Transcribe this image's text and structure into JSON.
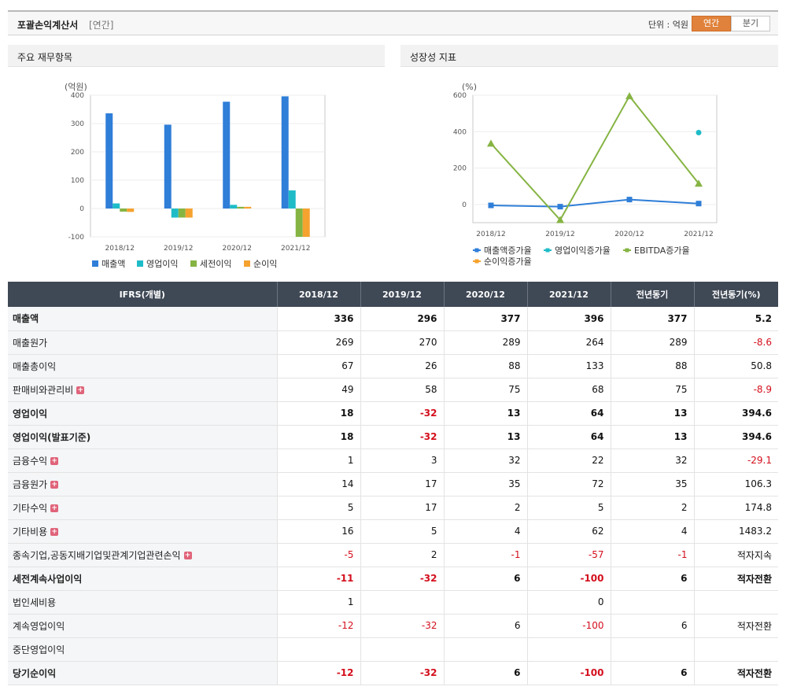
{
  "header": {
    "title": "포괄손익계산서",
    "sub": "[연간]",
    "unit": "단위 : 억원",
    "toggle": [
      "연간",
      "분기"
    ]
  },
  "left_chart": {
    "heading": "주요 재무항목",
    "colors": [
      "#2f7ed8",
      "#1fbcc8",
      "#86b443",
      "#f5a22f"
    ],
    "chart_data": {
      "type": "bar",
      "ylabel": "(억원)",
      "categories": [
        "2018/12",
        "2019/12",
        "2020/12",
        "2021/12"
      ],
      "ylim": [
        -100,
        400
      ],
      "yticks": [
        400,
        300,
        200,
        100,
        0,
        -100
      ],
      "series": [
        {
          "name": "매출액",
          "values": [
            336,
            296,
            377,
            396
          ]
        },
        {
          "name": "영업이익",
          "values": [
            18,
            -32,
            13,
            64
          ]
        },
        {
          "name": "세전이익",
          "values": [
            -11,
            -32,
            6,
            -100
          ]
        },
        {
          "name": "순이익",
          "values": [
            -12,
            -32,
            6,
            -100
          ]
        }
      ]
    }
  },
  "right_chart": {
    "heading": "성장성 지표",
    "colors": [
      "#2f7ed8",
      "#1fbcc8",
      "#86b443",
      "#f5a22f"
    ],
    "chart_data": {
      "type": "line",
      "ylabel": "(%)",
      "categories": [
        "2018/12",
        "2019/12",
        "2020/12",
        "2021/12"
      ],
      "ylim": [
        -100,
        600
      ],
      "yticks": [
        600,
        400,
        200,
        0
      ],
      "series": [
        {
          "name": "매출액증가율",
          "values": [
            -5,
            -12,
            27,
            5
          ]
        },
        {
          "name": "영업이익증가율",
          "values": [
            null,
            null,
            null,
            394.6
          ]
        },
        {
          "name": "EBITDA증가율",
          "values": [
            335,
            -85,
            595,
            115
          ]
        },
        {
          "name": "순이익증가율",
          "values": [
            null,
            null,
            null,
            null
          ]
        }
      ]
    }
  },
  "table": {
    "headers": [
      "IFRS(개별)",
      "2018/12",
      "2019/12",
      "2020/12",
      "2021/12",
      "전년동기",
      "전년동기(%)"
    ],
    "rows": [
      {
        "label": "매출액",
        "bold": true,
        "expand": false,
        "values": [
          "336",
          "296",
          "377",
          "396",
          "377",
          "5.2"
        ]
      },
      {
        "label": "매출원가",
        "bold": false,
        "expand": false,
        "values": [
          "269",
          "270",
          "289",
          "264",
          "289",
          "-8.6"
        ]
      },
      {
        "label": "매출총이익",
        "bold": false,
        "expand": false,
        "values": [
          "67",
          "26",
          "88",
          "133",
          "88",
          "50.8"
        ]
      },
      {
        "label": "판매비와관리비",
        "bold": false,
        "expand": true,
        "values": [
          "49",
          "58",
          "75",
          "68",
          "75",
          "-8.9"
        ]
      },
      {
        "label": "영업이익",
        "bold": true,
        "expand": false,
        "values": [
          "18",
          "-32",
          "13",
          "64",
          "13",
          "394.6"
        ]
      },
      {
        "label": "영업이익(발표기준)",
        "bold": true,
        "expand": false,
        "values": [
          "18",
          "-32",
          "13",
          "64",
          "13",
          "394.6"
        ]
      },
      {
        "label": "금융수익",
        "bold": false,
        "expand": true,
        "values": [
          "1",
          "3",
          "32",
          "22",
          "32",
          "-29.1"
        ]
      },
      {
        "label": "금융원가",
        "bold": false,
        "expand": true,
        "values": [
          "14",
          "17",
          "35",
          "72",
          "35",
          "106.3"
        ]
      },
      {
        "label": "기타수익",
        "bold": false,
        "expand": true,
        "values": [
          "5",
          "17",
          "2",
          "5",
          "2",
          "174.8"
        ]
      },
      {
        "label": "기타비용",
        "bold": false,
        "expand": true,
        "values": [
          "16",
          "5",
          "4",
          "62",
          "4",
          "1483.2"
        ]
      },
      {
        "label": "종속기업,공동지배기업및관계기업관련손익",
        "bold": false,
        "expand": true,
        "values": [
          "-5",
          "2",
          "-1",
          "-57",
          "-1",
          "적자지속"
        ]
      },
      {
        "label": "세전계속사업이익",
        "bold": true,
        "expand": false,
        "values": [
          "-11",
          "-32",
          "6",
          "-100",
          "6",
          "적자전환"
        ]
      },
      {
        "label": "법인세비용",
        "bold": false,
        "expand": false,
        "values": [
          "1",
          "",
          "",
          "0",
          "",
          ""
        ]
      },
      {
        "label": "계속영업이익",
        "bold": false,
        "expand": false,
        "values": [
          "-12",
          "-32",
          "6",
          "-100",
          "6",
          "적자전환"
        ]
      },
      {
        "label": "중단영업이익",
        "bold": false,
        "expand": false,
        "values": [
          "",
          "",
          "",
          "",
          "",
          ""
        ]
      },
      {
        "label": "당기순이익",
        "bold": true,
        "expand": false,
        "values": [
          "-12",
          "-32",
          "6",
          "-100",
          "6",
          "적자전환"
        ]
      }
    ]
  }
}
